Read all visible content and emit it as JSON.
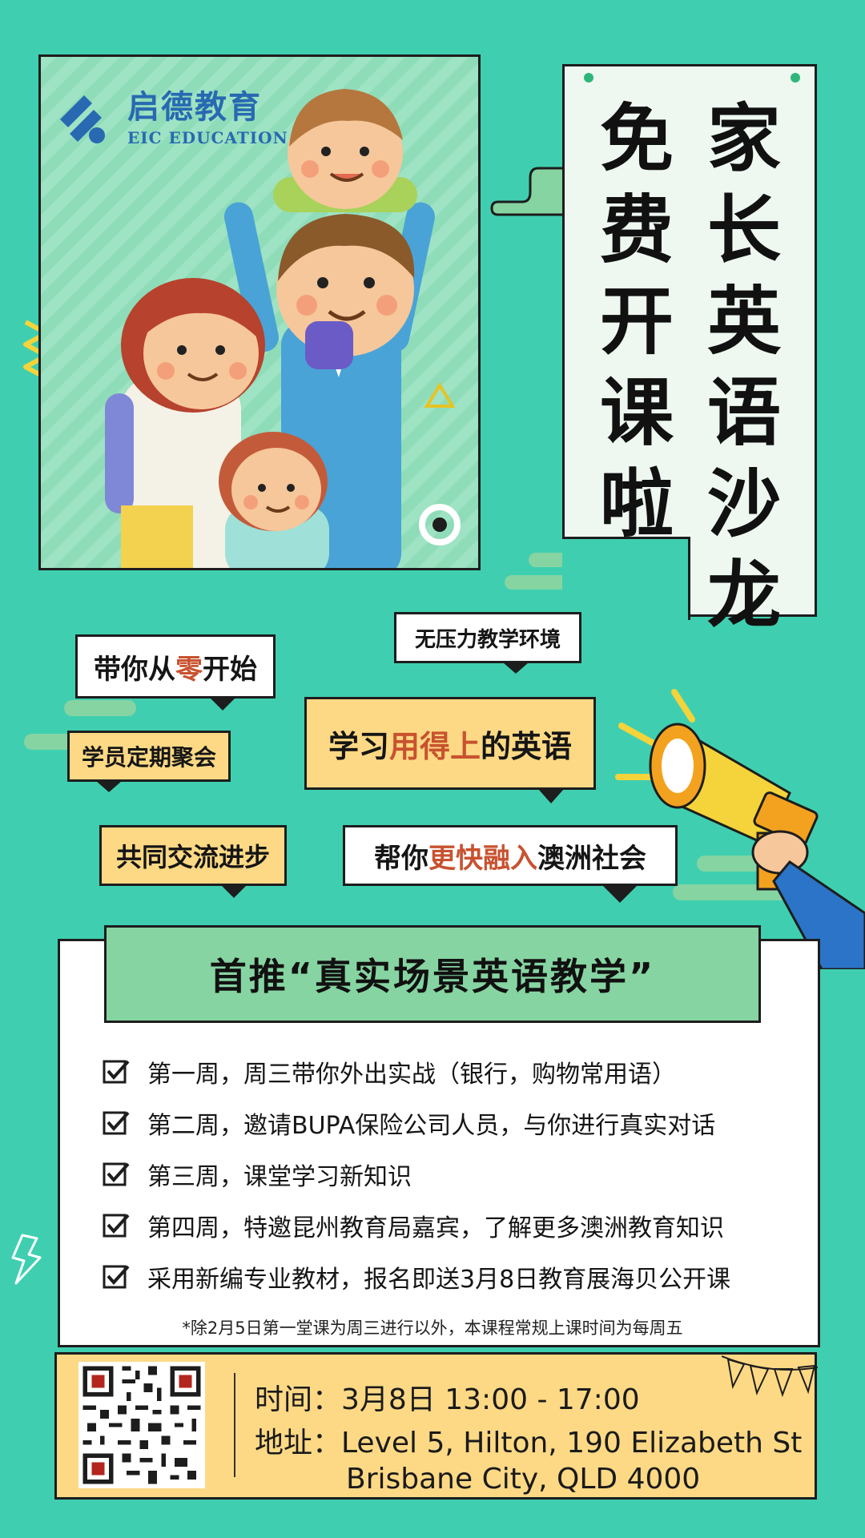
{
  "logo": {
    "cn": "启德教育",
    "en": "EIC EDUCATION"
  },
  "title": {
    "line1": "家长英语沙龙",
    "line2": "免费开课啦"
  },
  "bubbles": {
    "start_pre": "带你从",
    "start_hl": "零",
    "start_post": "开始",
    "no_pressure": "无压力教学环境",
    "learn_pre": "学习",
    "learn_hl": "用得上",
    "learn_post": "的英语",
    "meetup": "学员定期聚会",
    "exchange": "共同交流进步",
    "integrate_pre": "帮你",
    "integrate_hl": "更快融入",
    "integrate_post": "澳洲社会"
  },
  "colors": {
    "background": "#3fcfb0",
    "highlight": "#c8522f",
    "logo_blue": "#2869b2",
    "footer": "#fdd985",
    "bubble_yellow": "#fdd985",
    "header_green": "#86d4a2"
  },
  "course": {
    "heading": "首推“真实场景英语教学”",
    "items": [
      "第一周，周三带你外出实战（银行，购物常用语）",
      "第二周，邀请BUPA保险公司人员，与你进行真实对话",
      "第三周，课堂学习新知识",
      "第四周，特邀昆州教育局嘉宾，了解更多澳洲教育知识",
      "采用新编专业教材，报名即送3月8日教育展海贝公开课"
    ],
    "note": "*除2月5日第一堂课为周三进行以外，本课程常规上课时间为每周五"
  },
  "footer": {
    "time": "时间：3月8日 13:00 - 17:00",
    "address_line1": "地址：Level 5, Hilton, 190 Elizabeth St",
    "address_line2": "Brisbane City, QLD 4000"
  },
  "icons": {
    "qr": "qr-code-icon",
    "check": "checkbox-icon",
    "megaphone": "megaphone-icon",
    "logo": "eic-logo-icon"
  }
}
